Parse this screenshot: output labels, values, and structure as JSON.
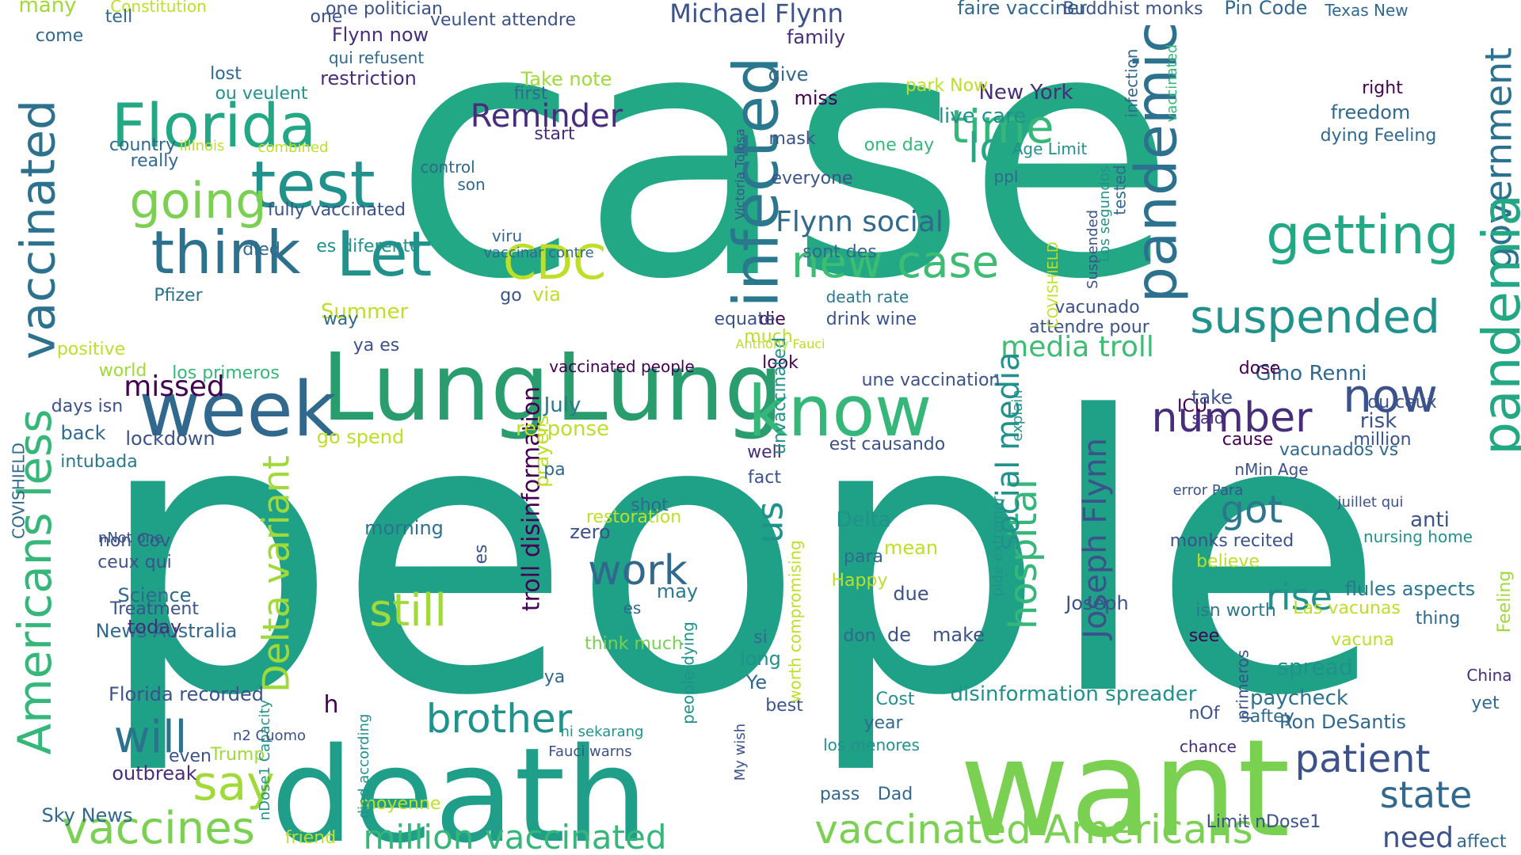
{
  "palette": {
    "background": "#ffffff",
    "teal_green": "#22a884",
    "mid_green": "#2a9d6e",
    "light_green": "#7ad151",
    "lime": "#bddf26",
    "teal": "#21918c",
    "blue": "#2c728e",
    "indigo": "#3b528b",
    "purple": "#472d7b",
    "dark": "#440154"
  },
  "words": [
    {
      "text": "case",
      "color": "#22a884"
    },
    {
      "text": "people",
      "color": "#1fa187"
    },
    {
      "text": "death",
      "color": "#1f9e89"
    },
    {
      "text": "want",
      "color": "#7ad151"
    },
    {
      "text": "Lung",
      "color": "#2a9d6e"
    },
    {
      "text": "Lung",
      "color": "#2a9d6e"
    },
    {
      "text": "know",
      "color": "#35b779"
    },
    {
      "text": "week",
      "color": "#31688e"
    },
    {
      "text": "test",
      "color": "#21918c"
    },
    {
      "text": "Florida",
      "color": "#22a884"
    },
    {
      "text": "infected",
      "color": "#2a788e"
    },
    {
      "text": "pandemic",
      "color": "#2c728e"
    },
    {
      "text": "think",
      "color": "#2c728e"
    },
    {
      "text": "Let",
      "color": "#21918c"
    },
    {
      "text": "going",
      "color": "#7ad151"
    },
    {
      "text": "time",
      "color": "#35b779"
    },
    {
      "text": "new case",
      "color": "#3dbc74"
    },
    {
      "text": "CDC",
      "color": "#bddf26"
    },
    {
      "text": "lo",
      "color": "#22a884"
    },
    {
      "text": "getting",
      "color": "#22a884"
    },
    {
      "text": "suspended",
      "color": "#21918c"
    },
    {
      "text": "government",
      "color": "#2c728e"
    },
    {
      "text": "pandemia",
      "color": "#22a884"
    },
    {
      "text": "vaccinated",
      "color": "#2c728e"
    },
    {
      "text": "Americans less",
      "color": "#35b779"
    },
    {
      "text": "vaccines",
      "color": "#7ad151"
    },
    {
      "text": "say",
      "color": "#a0da39"
    },
    {
      "text": "will",
      "color": "#2c728e"
    },
    {
      "text": "brother",
      "color": "#21918c"
    },
    {
      "text": "work",
      "color": "#31688e"
    },
    {
      "text": "still",
      "color": "#a0da39"
    },
    {
      "text": "number",
      "color": "#472d7b"
    },
    {
      "text": "got",
      "color": "#2a788e"
    },
    {
      "text": "rise",
      "color": "#21918c"
    },
    {
      "text": "patient",
      "color": "#3b528b"
    },
    {
      "text": "state",
      "color": "#31688e"
    },
    {
      "text": "now",
      "color": "#3b528b"
    },
    {
      "text": "need",
      "color": "#3b528b"
    },
    {
      "text": "million vaccinated",
      "color": "#35b779"
    },
    {
      "text": "vaccinated Americans",
      "color": "#7ad151"
    },
    {
      "text": "Michael Flynn",
      "color": "#3b528b"
    },
    {
      "text": "Joseph Flynn",
      "color": "#3b528b"
    },
    {
      "text": "media troll",
      "color": "#3dbc74"
    },
    {
      "text": "hospital",
      "color": "#35b779"
    },
    {
      "text": "social media",
      "color": "#21918c"
    },
    {
      "text": "Delta variant",
      "color": "#a0da39"
    },
    {
      "text": "Reminder",
      "color": "#472d7b"
    },
    {
      "text": "missed",
      "color": "#440154"
    },
    {
      "text": "troll disinformation",
      "color": "#440154"
    },
    {
      "text": "Flynn social",
      "color": "#31688e"
    },
    {
      "text": "Gino Renni",
      "color": "#31688e"
    },
    {
      "text": "New York",
      "color": "#472d7b"
    },
    {
      "text": "disinformation spreader",
      "color": "#21918c"
    },
    {
      "text": "spread",
      "color": "#21918c"
    },
    {
      "text": "paycheck",
      "color": "#2c728e"
    },
    {
      "text": "Ron DeSantis",
      "color": "#31688e"
    },
    {
      "text": "us",
      "color": "#21918c"
    },
    {
      "text": "flules aspects",
      "color": "#2a788e"
    },
    {
      "text": "News Australia",
      "color": "#31688e"
    },
    {
      "text": "Florida recorded",
      "color": "#3b528b"
    },
    {
      "text": "Sky News",
      "color": "#31688e"
    },
    {
      "text": "lockdown",
      "color": "#3b528b"
    },
    {
      "text": "Science",
      "color": "#31688e"
    },
    {
      "text": "today",
      "color": "#472d7b"
    },
    {
      "text": "outbreak",
      "color": "#472d7b"
    },
    {
      "text": "Pfizer",
      "color": "#2c728e"
    },
    {
      "text": "fully vaccinated",
      "color": "#3b528b"
    },
    {
      "text": "es diferente",
      "color": "#21918c"
    },
    {
      "text": "died",
      "color": "#31688e"
    },
    {
      "text": "Summer",
      "color": "#bddf26"
    },
    {
      "text": "Take note",
      "color": "#a0da39"
    },
    {
      "text": "restriction",
      "color": "#472d7b"
    },
    {
      "text": "one politician",
      "color": "#3b528b"
    },
    {
      "text": "faire vacciner",
      "color": "#31688e"
    },
    {
      "text": "Pin Code",
      "color": "#31688e"
    },
    {
      "text": "Buddhist monks",
      "color": "#3b528b"
    },
    {
      "text": "Constitution",
      "color": "#bddf26"
    },
    {
      "text": "many",
      "color": "#a0da39"
    },
    {
      "text": "Flynn now",
      "color": "#472d7b"
    },
    {
      "text": "country",
      "color": "#31688e"
    },
    {
      "text": "one day",
      "color": "#35b779"
    },
    {
      "text": "family",
      "color": "#472d7b"
    },
    {
      "text": "give",
      "color": "#31688e"
    },
    {
      "text": "miss",
      "color": "#440154"
    },
    {
      "text": "mask",
      "color": "#3b528b"
    },
    {
      "text": "everyone",
      "color": "#3b528b"
    },
    {
      "text": "sont des",
      "color": "#31688e"
    },
    {
      "text": "drink wine",
      "color": "#3b528b"
    },
    {
      "text": "death rate",
      "color": "#2a788e"
    },
    {
      "text": "die",
      "color": "#440154"
    },
    {
      "text": "equate",
      "color": "#3b528b"
    },
    {
      "text": "vacunados vs",
      "color": "#31688e"
    },
    {
      "text": "freedom",
      "color": "#31688e"
    },
    {
      "text": "dying Feeling",
      "color": "#31688e"
    },
    {
      "text": "right",
      "color": "#440154"
    },
    {
      "text": "Texas New",
      "color": "#31688e"
    },
    {
      "text": "Age Limit",
      "color": "#21918c"
    },
    {
      "text": "live care",
      "color": "#21918c"
    },
    {
      "text": "park Now",
      "color": "#bddf26"
    },
    {
      "text": "vaccinated people",
      "color": "#440154"
    },
    {
      "text": "los primeros",
      "color": "#35b779"
    },
    {
      "text": "world",
      "color": "#a0da39"
    },
    {
      "text": "positive",
      "color": "#bddf26"
    },
    {
      "text": "days isn",
      "color": "#3b528b"
    },
    {
      "text": "back",
      "color": "#31688e"
    },
    {
      "text": "intubada",
      "color": "#2a788e"
    },
    {
      "text": "response",
      "color": "#bddf26"
    },
    {
      "text": "prayers",
      "color": "#bddf26"
    },
    {
      "text": "July",
      "color": "#2a788e"
    },
    {
      "text": "pa",
      "color": "#31688e"
    },
    {
      "text": "morning",
      "color": "#2c728e"
    },
    {
      "text": "shot",
      "color": "#31688e"
    },
    {
      "text": "restoration",
      "color": "#bddf26"
    },
    {
      "text": "zero",
      "color": "#3b528b"
    },
    {
      "text": "may",
      "color": "#2a788e"
    },
    {
      "text": "think much",
      "color": "#7ad151"
    },
    {
      "text": "Delta",
      "color": "#21918c"
    },
    {
      "text": "mean",
      "color": "#bddf26"
    },
    {
      "text": "para",
      "color": "#31688e"
    },
    {
      "text": "Happy",
      "color": "#bddf26"
    },
    {
      "text": "due",
      "color": "#3b528b"
    },
    {
      "text": "don",
      "color": "#31688e"
    },
    {
      "text": "de",
      "color": "#3b528b"
    },
    {
      "text": "make",
      "color": "#3b528b"
    },
    {
      "text": "Cost",
      "color": "#21918c"
    },
    {
      "text": "year",
      "color": "#31688e"
    },
    {
      "text": "Dad",
      "color": "#31688e"
    },
    {
      "text": "pass",
      "color": "#31688e"
    },
    {
      "text": "los menores",
      "color": "#21918c"
    },
    {
      "text": "look",
      "color": "#440154"
    },
    {
      "text": "fact",
      "color": "#3b528b"
    },
    {
      "text": "well",
      "color": "#472d7b"
    },
    {
      "text": "est causando",
      "color": "#3b528b"
    },
    {
      "text": "une vaccination",
      "color": "#3b528b"
    },
    {
      "text": "much",
      "color": "#bddf26"
    },
    {
      "text": "way",
      "color": "#31688e"
    },
    {
      "text": "ya es",
      "color": "#3b528b"
    },
    {
      "text": "go spend",
      "color": "#bddf26"
    },
    {
      "text": "long",
      "color": "#21918c"
    },
    {
      "text": "best",
      "color": "#3b528b"
    },
    {
      "text": "Ye",
      "color": "#31688e"
    },
    {
      "text": "si",
      "color": "#31688e"
    },
    {
      "text": "es",
      "color": "#31688e"
    },
    {
      "text": "ya",
      "color": "#31688e"
    },
    {
      "text": "h",
      "color": "#440154"
    },
    {
      "text": "friend",
      "color": "#bddf26"
    },
    {
      "text": "even",
      "color": "#3b528b"
    },
    {
      "text": "Trump",
      "color": "#a0da39"
    },
    {
      "text": "moyenne",
      "color": "#bddf26"
    },
    {
      "text": "died according",
      "color": "#21918c"
    },
    {
      "text": "nDose1 Capacity",
      "color": "#21918c"
    },
    {
      "text": "really",
      "color": "#31688e"
    },
    {
      "text": "come",
      "color": "#31688e"
    },
    {
      "text": "tell",
      "color": "#31688e"
    },
    {
      "text": "lost",
      "color": "#31688e"
    },
    {
      "text": "ou veulent",
      "color": "#21918c"
    },
    {
      "text": "combined",
      "color": "#bddf26"
    },
    {
      "text": "illinois",
      "color": "#bddf26"
    },
    {
      "text": "qui refusent",
      "color": "#31688e"
    },
    {
      "text": "Victoria Tolosa",
      "color": "#3b528b"
    },
    {
      "text": "ICU",
      "color": "#440154"
    },
    {
      "text": "cause",
      "color": "#440154"
    },
    {
      "text": "million",
      "color": "#3b528b"
    },
    {
      "text": "risk",
      "color": "#3b528b"
    },
    {
      "text": "du ceux",
      "color": "#3b528b"
    },
    {
      "text": "take",
      "color": "#3b528b"
    },
    {
      "text": "said",
      "color": "#472d7b"
    },
    {
      "text": "see",
      "color": "#440154"
    },
    {
      "text": "isn worth",
      "color": "#2a788e"
    },
    {
      "text": "monks recited",
      "color": "#3b528b"
    },
    {
      "text": "believe",
      "color": "#bddf26"
    },
    {
      "text": "anti",
      "color": "#3b528b"
    },
    {
      "text": "nursing home",
      "color": "#21918c"
    },
    {
      "text": "thing",
      "color": "#31688e"
    },
    {
      "text": "Las vacunas",
      "color": "#bddf26"
    },
    {
      "text": "vacuna",
      "color": "#bddf26"
    },
    {
      "text": "saftey",
      "color": "#31688e"
    },
    {
      "text": "Limit nDose1",
      "color": "#3b528b"
    },
    {
      "text": "yet",
      "color": "#31688e"
    },
    {
      "text": "affect",
      "color": "#31688e"
    },
    {
      "text": "China",
      "color": "#472d7b"
    },
    {
      "text": "Feeling",
      "color": "#a0da39"
    },
    {
      "text": "vacunado",
      "color": "#3b528b"
    },
    {
      "text": "attendre pour",
      "color": "#3b528b"
    },
    {
      "text": "COVISHIELD",
      "color": "#bddf26"
    },
    {
      "text": "Suspended",
      "color": "#3b528b"
    },
    {
      "text": "tested",
      "color": "#31688e"
    },
    {
      "text": "infection",
      "color": "#31688e"
    },
    {
      "text": "n2 Cuomo",
      "color": "#3b528b"
    },
    {
      "text": "worth compromising",
      "color": "#bddf26"
    },
    {
      "text": "people dying",
      "color": "#21918c"
    },
    {
      "text": "unvaccinated",
      "color": "#21918c"
    },
    {
      "text": "My wish",
      "color": "#3b528b"
    },
    {
      "text": "pide extremar",
      "color": "#21918c"
    },
    {
      "text": "ni sekarang",
      "color": "#21918c"
    },
    {
      "text": "Fauci warns",
      "color": "#3b528b"
    },
    {
      "text": "explain",
      "color": "#21918c"
    },
    {
      "text": "Anthony Fauci",
      "color": "#bddf26"
    },
    {
      "text": "Joseph",
      "color": "#3b528b"
    },
    {
      "text": "via",
      "color": "#bddf26"
    },
    {
      "text": "go",
      "color": "#3b528b"
    },
    {
      "text": "viru",
      "color": "#31688e"
    },
    {
      "text": "vaccinar contre",
      "color": "#31688e"
    },
    {
      "text": "es",
      "color": "#3b528b"
    },
    {
      "text": "control",
      "color": "#31688e"
    },
    {
      "text": "son",
      "color": "#31688e"
    },
    {
      "text": "start",
      "color": "#472d7b"
    },
    {
      "text": "first",
      "color": "#31688e"
    },
    {
      "text": "veulent attendre",
      "color": "#3b528b"
    },
    {
      "text": "ceux qui",
      "color": "#3b528b"
    },
    {
      "text": "Treatment",
      "color": "#3b528b"
    },
    {
      "text": "non Cov",
      "color": "#3b528b"
    },
    {
      "text": "nNot one",
      "color": "#3b528b"
    },
    {
      "text": "dose",
      "color": "#440154"
    },
    {
      "text": "nMin Age",
      "color": "#3b528b"
    },
    {
      "text": "error Para",
      "color": "#3b528b"
    },
    {
      "text": "juillet qui",
      "color": "#3b528b"
    },
    {
      "text": "nOf",
      "color": "#3b528b"
    },
    {
      "text": "chance",
      "color": "#472d7b"
    },
    {
      "text": "primeros",
      "color": "#3b528b"
    },
    {
      "text": "COVISHIELD",
      "color": "#31688e"
    },
    {
      "text": "vaccinated",
      "color": "#35b779"
    },
    {
      "text": "Los segundos",
      "color": "#21918c"
    },
    {
      "text": "ppl",
      "color": "#31688e"
    },
    {
      "text": "one",
      "color": "#3b528b"
    }
  ]
}
